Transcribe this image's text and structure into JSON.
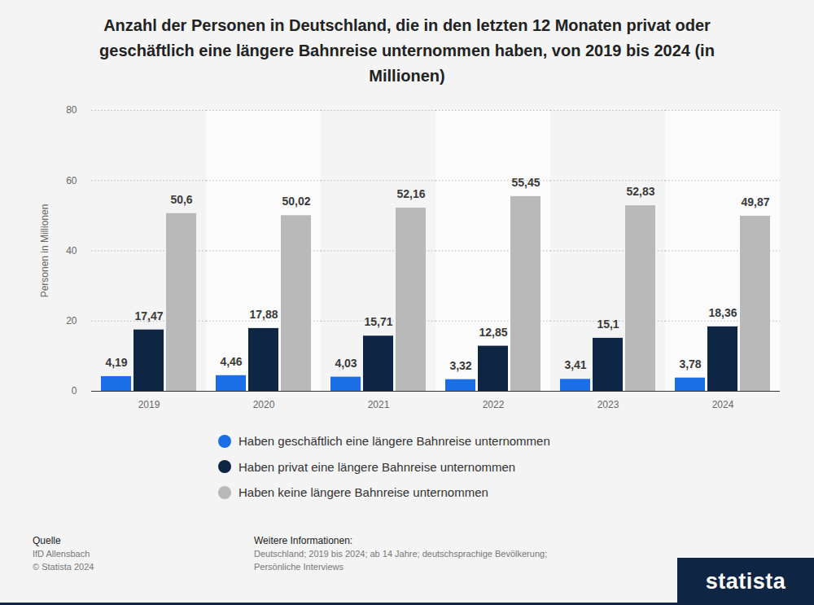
{
  "chart_data": {
    "type": "bar",
    "title": "Anzahl der Personen in Deutschland, die in den letzten 12 Monaten privat oder geschäftlich eine längere Bahnreise unternommen haben, von 2019 bis 2024 (in Millionen)",
    "y_label": "Personen in Millionen",
    "categories": [
      "2019",
      "2020",
      "2021",
      "2022",
      "2023",
      "2024"
    ],
    "series": [
      {
        "name": "Haben geschäftlich eine längere Bahnreise unternommen",
        "color": "#1a6fe6",
        "values": [
          4.19,
          4.46,
          4.03,
          3.32,
          3.41,
          3.78
        ],
        "value_labels": [
          "4,19",
          "4,46",
          "4,03",
          "3,32",
          "3,41",
          "3,78"
        ]
      },
      {
        "name": "Haben privat eine längere Bahnreise unternommen",
        "color": "#0f2544",
        "values": [
          17.47,
          17.88,
          15.71,
          12.85,
          15.1,
          18.36
        ],
        "value_labels": [
          "17,47",
          "17,88",
          "15,71",
          "12,85",
          "15,1",
          "18,36"
        ]
      },
      {
        "name": "Haben keine längere Bahnreise unternommen",
        "color": "#b9b9b9",
        "values": [
          50.6,
          50.02,
          52.16,
          55.45,
          52.83,
          49.87
        ],
        "value_labels": [
          "50,6",
          "50,02",
          "52,16",
          "55,45",
          "52,83",
          "49,87"
        ]
      }
    ],
    "ylim": [
      0,
      80
    ],
    "yticks": [
      0,
      20,
      40,
      60,
      80
    ],
    "grid": true,
    "data_labels": true,
    "legend": "bottom"
  },
  "footer": {
    "source_label": "Quelle",
    "source": "IfD Allensbach",
    "copyright": "© Statista 2024",
    "info_label": "Weitere Informationen:",
    "info": "Deutschland; 2019 bis 2024; ab 14 Jahre; deutschsprachige Bevölkerung; Persönliche Interviews",
    "brand": "statista"
  }
}
